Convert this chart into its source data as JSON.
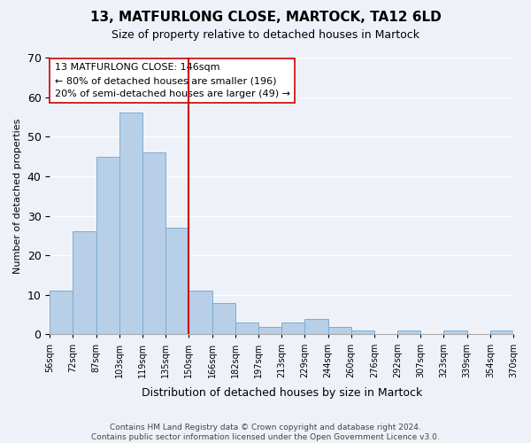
{
  "title": "13, MATFURLONG CLOSE, MARTOCK, TA12 6LD",
  "subtitle": "Size of property relative to detached houses in Martock",
  "xlabel": "Distribution of detached houses by size in Martock",
  "ylabel": "Number of detached properties",
  "bar_labels": [
    "56sqm",
    "72sqm",
    "87sqm",
    "103sqm",
    "119sqm",
    "135sqm",
    "150sqm",
    "166sqm",
    "182sqm",
    "197sqm",
    "213sqm",
    "229sqm",
    "244sqm",
    "260sqm",
    "276sqm",
    "292sqm",
    "307sqm",
    "323sqm",
    "339sqm",
    "354sqm",
    "370sqm"
  ],
  "bar_values": [
    11,
    26,
    45,
    56,
    46,
    27,
    11,
    8,
    3,
    2,
    3,
    4,
    2,
    1,
    0,
    1,
    0,
    1,
    0,
    1
  ],
  "bar_color": "#b8cfe8",
  "bar_edge_color": "#7aadd4",
  "reference_line_label": "150sqm",
  "reference_line_color": "#cc0000",
  "annotation_text": "13 MATFURLONG CLOSE: 146sqm\n← 80% of detached houses are smaller (196)\n20% of semi-detached houses are larger (49) →",
  "annotation_box_color": "#ffffff",
  "annotation_box_edge_color": "#cc0000",
  "ylim": [
    0,
    70
  ],
  "yticks": [
    0,
    10,
    20,
    30,
    40,
    50,
    60,
    70
  ],
  "footer_text": "Contains HM Land Registry data © Crown copyright and database right 2024.\nContains public sector information licensed under the Open Government Licence v3.0.",
  "bg_color": "#eef2f8",
  "plot_bg_color": "#eef2f8"
}
